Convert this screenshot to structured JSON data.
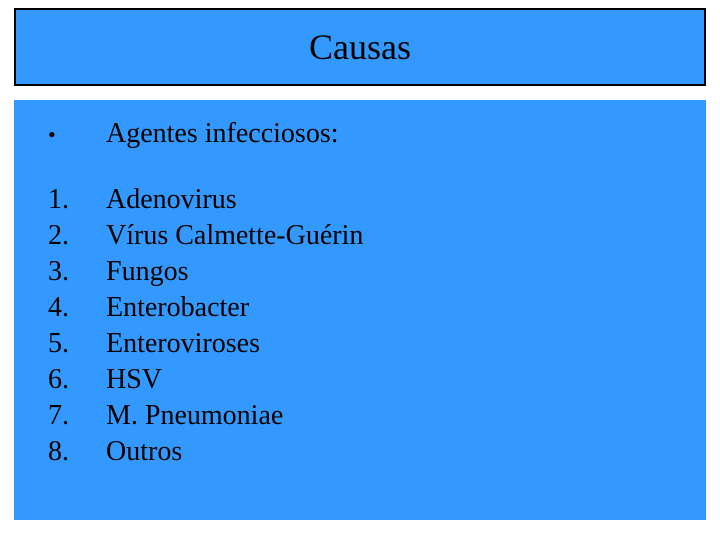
{
  "title_box": {
    "text": "Causas",
    "background_color": "#3399ff",
    "border_color": "#000000",
    "border_width": 2,
    "font_family": "Times New Roman",
    "font_size_pt": 27,
    "text_color": "#000000"
  },
  "content_box": {
    "background_color": "#3399ff",
    "font_family": "Times New Roman",
    "font_size_pt": 21,
    "text_color": "#000000",
    "bullet": {
      "marker": "•",
      "text": "Agentes infecciosos:"
    },
    "numbered_items": [
      {
        "marker": "1.",
        "text": "Adenovirus"
      },
      {
        "marker": "2.",
        "text": "Vírus  Calmette-Guérin"
      },
      {
        "marker": "3.",
        "text": "Fungos"
      },
      {
        "marker": "4.",
        "text": "Enterobacter"
      },
      {
        "marker": "5.",
        "text": "Enteroviroses"
      },
      {
        "marker": "6.",
        "text": "HSV"
      },
      {
        "marker": "7.",
        "text": "M. Pneumoniae"
      },
      {
        "marker": "8.",
        "text": "Outros"
      }
    ]
  }
}
